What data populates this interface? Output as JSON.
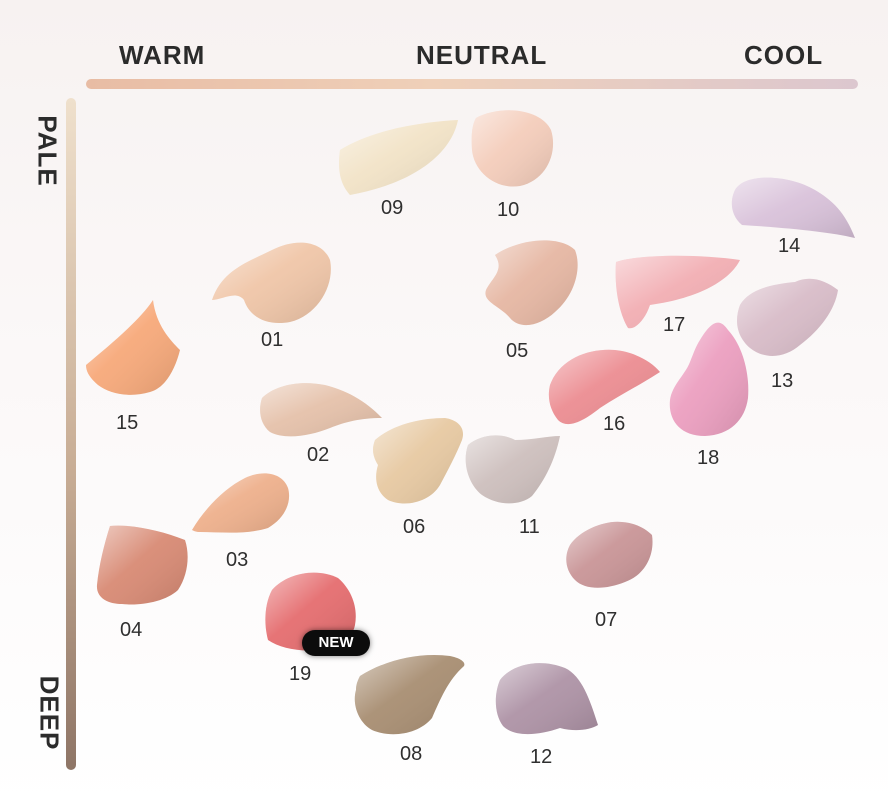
{
  "axes": {
    "warm": "WARM",
    "neutral": "NEUTRAL",
    "cool": "COOL",
    "pale": "PALE",
    "deep": "DEEP"
  },
  "badge": "NEW",
  "shades": [
    {
      "number": "09",
      "color": "#f2e3c7"
    },
    {
      "number": "10",
      "color": "#f4cdbb"
    },
    {
      "number": "14",
      "color": "#d9c2da"
    },
    {
      "number": "01",
      "color": "#f0c6a8"
    },
    {
      "number": "05",
      "color": "#e6b7a3"
    },
    {
      "number": "17",
      "color": "#f2aeb3"
    },
    {
      "number": "13",
      "color": "#d8bcc8"
    },
    {
      "number": "15",
      "color": "#f7a97a"
    },
    {
      "number": "16",
      "color": "#ec8d92"
    },
    {
      "number": "18",
      "color": "#ec9fc0"
    },
    {
      "number": "02",
      "color": "#e5c1aa"
    },
    {
      "number": "06",
      "color": "#e7c9a2"
    },
    {
      "number": "11",
      "color": "#cdbfbd"
    },
    {
      "number": "03",
      "color": "#eeb08c"
    },
    {
      "number": "04",
      "color": "#d88a74"
    },
    {
      "number": "07",
      "color": "#c99597"
    },
    {
      "number": "19",
      "color": "#e56d6f"
    },
    {
      "number": "08",
      "color": "#a88e72"
    },
    {
      "number": "12",
      "color": "#ae93a6"
    }
  ]
}
